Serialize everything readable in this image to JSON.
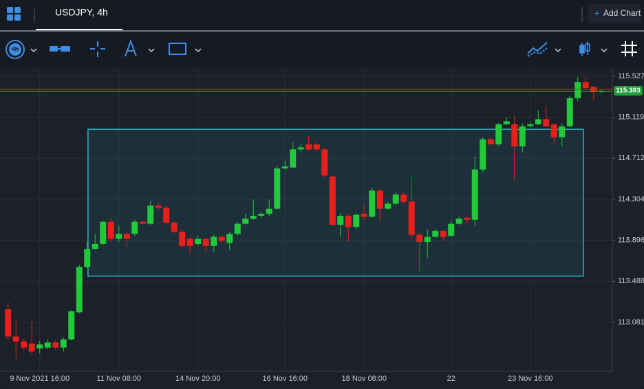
{
  "header": {
    "tab_title": "USDJPY, 4h",
    "add_chart_icon": "+",
    "add_chart": "Add Chart"
  },
  "toolbar": {
    "interval": "4h"
  },
  "chart_data": {
    "type": "candlestick",
    "categories": [
      null,
      null,
      null,
      null,
      "9 Nov 2021 16:00",
      null,
      null,
      null,
      null,
      null,
      null,
      null,
      null,
      null,
      "11 Nov 08:00",
      null,
      null,
      null,
      null,
      null,
      null,
      null,
      null,
      null,
      "14 Nov 20:00",
      null,
      null,
      null,
      null,
      null,
      null,
      null,
      null,
      null,
      null,
      "16 Nov 16:00",
      null,
      null,
      null,
      null,
      null,
      null,
      null,
      null,
      null,
      "18 Nov 08:00",
      null,
      null,
      null,
      null,
      null,
      null,
      null,
      null,
      null,
      null,
      "22",
      null,
      null,
      null,
      null,
      null,
      null,
      null,
      null,
      null,
      "23 Nov 16:00",
      null,
      null,
      null,
      null,
      null,
      null,
      null,
      null,
      null
    ],
    "open": [
      113.21,
      112.94,
      112.89,
      112.87,
      112.82,
      112.83,
      112.88,
      112.83,
      112.91,
      113.18,
      113.63,
      113.81,
      113.86,
      114.08,
      113.91,
      113.96,
      113.96,
      114.08,
      114.06,
      114.24,
      114.22,
      114.07,
      113.98,
      113.91,
      113.86,
      113.91,
      113.84,
      113.93,
      113.87,
      113.96,
      114.06,
      114.11,
      114.14,
      114.16,
      114.21,
      114.61,
      114.62,
      114.8,
      114.85,
      114.85,
      114.8,
      114.53,
      114.05,
      114.14,
      114.03,
      114.16,
      114.13,
      114.39,
      114.21,
      114.26,
      114.35,
      114.28,
      113.95,
      113.88,
      113.93,
      113.99,
      113.94,
      114.06,
      114.12,
      114.1,
      114.6,
      114.9,
      114.85,
      115.05,
      115.05,
      114.83,
      115.03,
      115.05,
      115.1,
      115.05,
      114.92,
      115.03,
      115.31,
      115.47,
      115.42,
      115.37
    ],
    "high": [
      113.28,
      113.11,
      112.92,
      113.09,
      112.9,
      112.91,
      112.9,
      112.93,
      113.2,
      113.65,
      113.88,
      113.96,
      114.09,
      114.12,
      114.04,
      113.98,
      114.1,
      114.09,
      114.29,
      114.27,
      114.24,
      114.08,
      114.0,
      113.93,
      113.94,
      113.92,
      113.95,
      113.95,
      113.98,
      114.08,
      114.16,
      114.3,
      114.18,
      114.3,
      114.63,
      114.69,
      114.87,
      114.85,
      114.94,
      114.87,
      114.82,
      114.54,
      114.17,
      114.16,
      114.17,
      114.24,
      114.42,
      114.41,
      114.28,
      114.37,
      114.37,
      114.52,
      113.97,
      114.0,
      114.01,
      114.0,
      114.09,
      114.13,
      114.14,
      114.73,
      114.92,
      114.92,
      115.06,
      115.12,
      115.14,
      115.06,
      115.07,
      115.19,
      115.23,
      115.06,
      115.06,
      115.33,
      115.52,
      115.52,
      115.43,
      115.39
    ],
    "low": [
      112.9,
      112.72,
      112.8,
      112.76,
      112.77,
      112.81,
      112.81,
      112.79,
      112.9,
      113.17,
      113.62,
      113.8,
      113.85,
      113.88,
      113.88,
      113.83,
      113.94,
      114.05,
      114.05,
      114.2,
      114.05,
      113.97,
      113.83,
      113.76,
      113.84,
      113.78,
      113.78,
      113.86,
      113.8,
      113.94,
      114.05,
      114.1,
      114.12,
      114.14,
      114.2,
      114.6,
      114.61,
      114.77,
      114.78,
      114.78,
      114.52,
      114.04,
      113.93,
      113.88,
      114.01,
      114.1,
      114.12,
      114.09,
      114.2,
      114.24,
      114.26,
      113.91,
      113.59,
      113.72,
      113.92,
      113.89,
      113.93,
      114.05,
      114.07,
      114.04,
      114.57,
      114.83,
      114.83,
      115.04,
      114.48,
      114.77,
      115.02,
      115.04,
      115.02,
      114.86,
      114.83,
      115.02,
      115.28,
      115.4,
      115.3,
      115.36
    ],
    "close": [
      112.94,
      112.89,
      112.83,
      112.79,
      112.86,
      112.88,
      112.83,
      112.91,
      113.19,
      113.63,
      113.81,
      113.86,
      114.08,
      113.91,
      113.96,
      113.91,
      114.08,
      114.06,
      114.24,
      114.22,
      114.07,
      113.98,
      113.84,
      113.84,
      113.91,
      113.84,
      113.93,
      113.89,
      113.96,
      114.06,
      114.11,
      114.14,
      114.16,
      114.21,
      114.61,
      114.63,
      114.8,
      114.82,
      114.8,
      114.8,
      114.54,
      114.05,
      114.14,
      114.03,
      114.15,
      114.13,
      114.39,
      114.21,
      114.26,
      114.35,
      114.28,
      113.95,
      113.88,
      113.93,
      113.99,
      113.93,
      114.06,
      114.11,
      114.1,
      114.6,
      114.9,
      114.85,
      115.05,
      115.08,
      114.83,
      115.03,
      115.05,
      115.1,
      115.03,
      114.92,
      115.03,
      115.31,
      115.47,
      115.41,
      115.37,
      115.38
    ],
    "up_color": "#22c93a",
    "down_color": "#e8201c",
    "ylim": [
      112.595,
      115.602
    ],
    "yticks": [
      115.527,
      115.119,
      114.712,
      114.304,
      113.896,
      113.488,
      113.081
    ],
    "grid": true,
    "last_price": 115.383,
    "rectangle": {
      "top": 115.0,
      "bottom": 113.54,
      "start": 10.6,
      "end": 73.2,
      "color": "#2bb8c9"
    }
  }
}
